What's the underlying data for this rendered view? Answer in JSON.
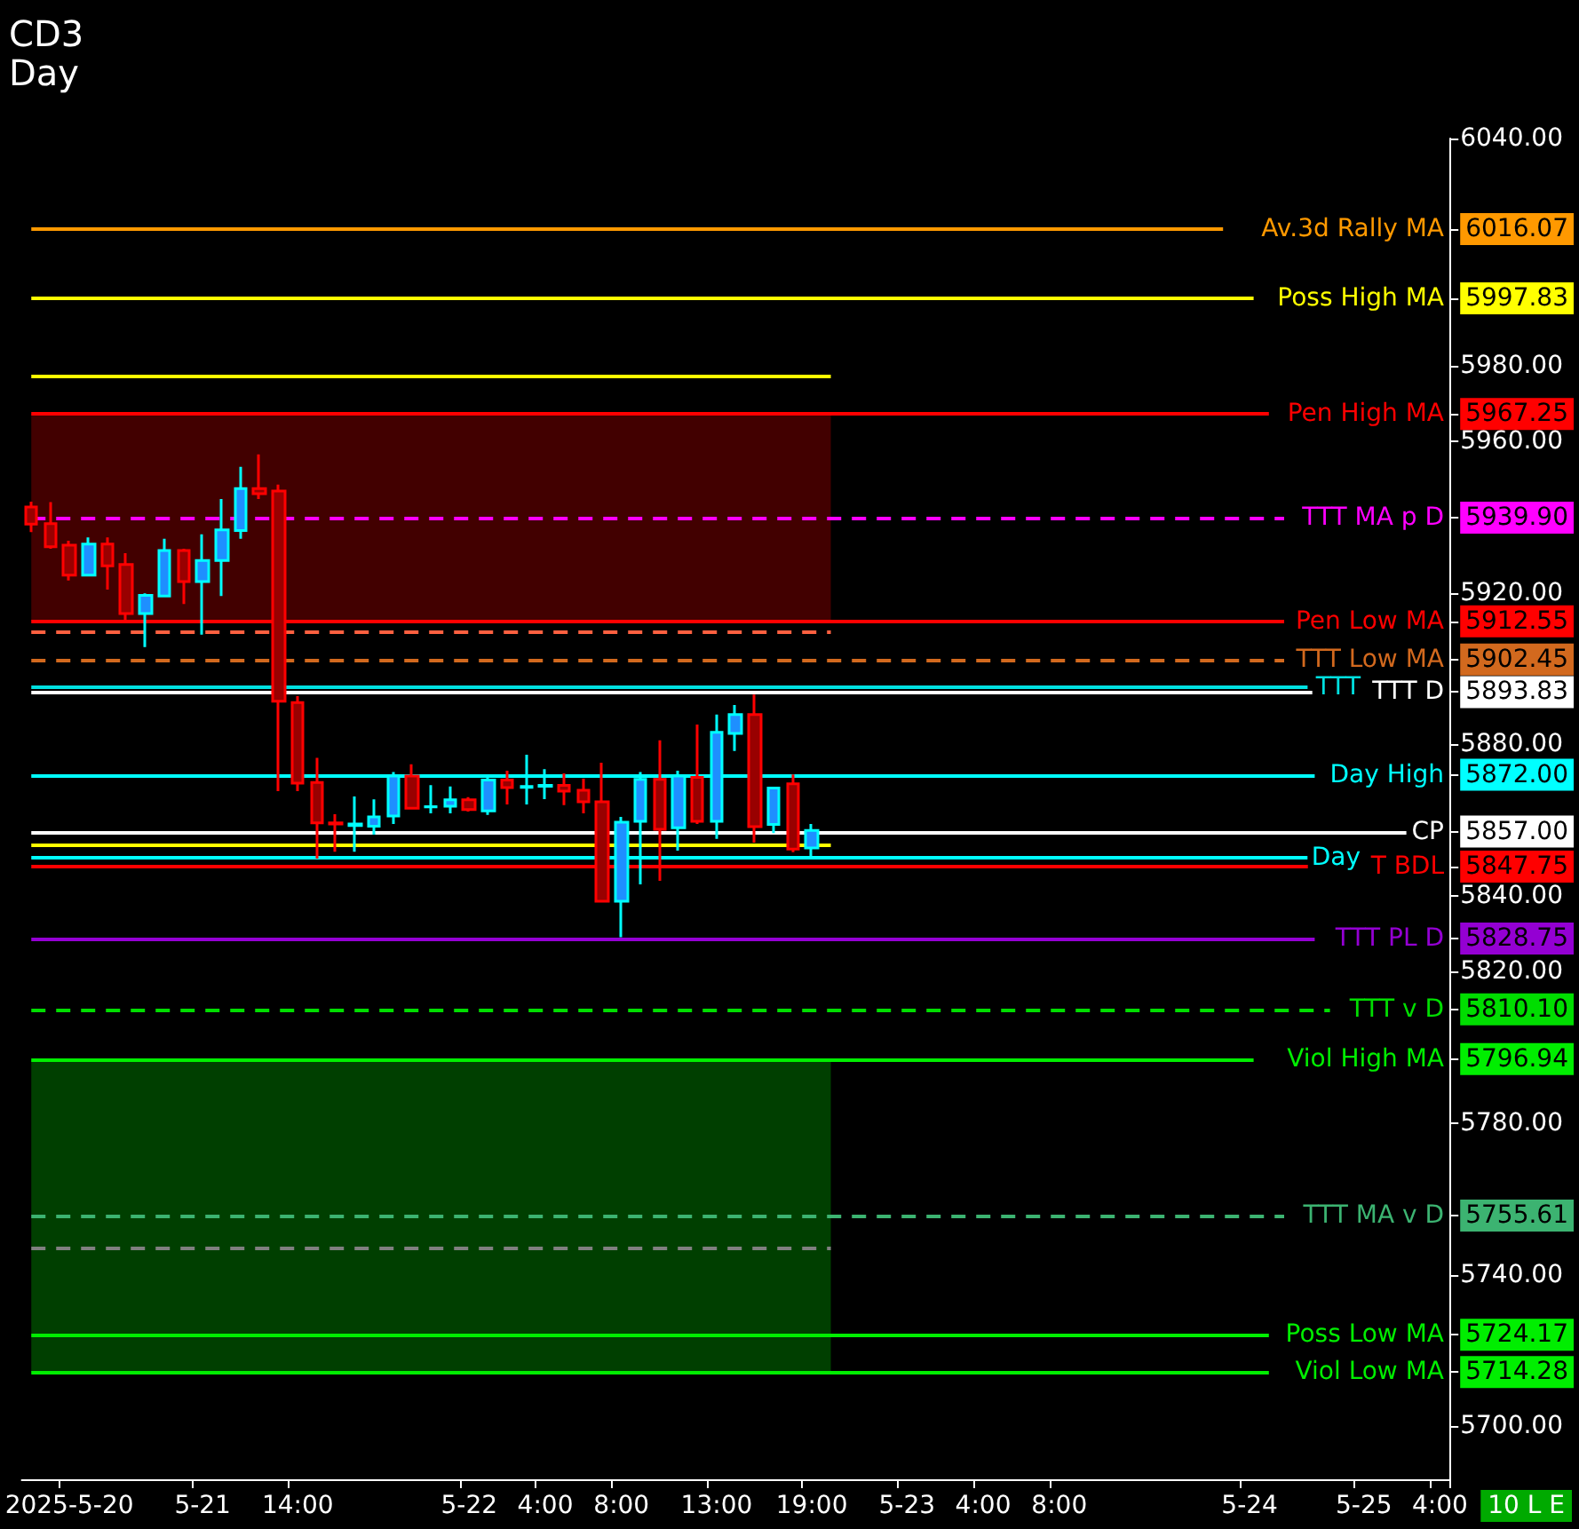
{
  "chart_data": {
    "type": "candlestick",
    "title": "CD3",
    "subtitle": "Day",
    "categories": [
      null,
      null,
      "2025-5-20",
      null,
      null,
      null,
      null,
      null,
      null,
      "5-21",
      null,
      null,
      null,
      null,
      "14:00",
      null,
      null,
      null,
      null,
      null,
      null,
      null,
      null,
      "5-22",
      null,
      null,
      null,
      "4:00",
      null,
      null,
      null,
      "8:00",
      null,
      null,
      null,
      null,
      "13:00",
      null,
      null,
      null,
      null,
      "19:00",
      null,
      null,
      null,
      null,
      "5-23",
      null,
      null,
      null,
      "4:00",
      null,
      null,
      null,
      "8:00",
      null,
      null,
      null,
      null,
      null,
      null,
      null,
      null,
      null,
      "5-24",
      null,
      null,
      null,
      null,
      null,
      "5-25",
      null,
      null,
      null,
      "4:00"
    ],
    "ohlc": [
      [
        5942.7,
        5944.1,
        5936.1,
        5938.2
      ],
      [
        5938.3,
        5944.0,
        5931.7,
        5932.2
      ],
      [
        5932.6,
        5933.8,
        5923.3,
        5924.7
      ],
      [
        5924.7,
        5934.7,
        5924.7,
        5932.9
      ],
      [
        5932.9,
        5934.7,
        5920.9,
        5927.2
      ],
      [
        5927.5,
        5930.5,
        5912.9,
        5914.6
      ],
      [
        5914.6,
        5919.9,
        5905.7,
        5919.4
      ],
      [
        5919.2,
        5934.3,
        5919.2,
        5931.2
      ],
      [
        5931.2,
        5931.7,
        5917.1,
        5923.0
      ],
      [
        5923.0,
        5935.5,
        5909.0,
        5928.6
      ],
      [
        5928.6,
        5944.8,
        5919.2,
        5936.7
      ],
      [
        5936.5,
        5953.3,
        5934.3,
        5947.6
      ],
      [
        5947.6,
        5956.6,
        5944.8,
        5946.2
      ],
      [
        5946.9,
        5948.6,
        5867.7,
        5891.4
      ],
      [
        5891.1,
        5892.8,
        5867.7,
        5869.8
      ],
      [
        5870.0,
        5876.5,
        5849.9,
        5859.3
      ],
      [
        5859.3,
        5861.6,
        5851.7,
        5859.0
      ],
      [
        5858.6,
        5866.3,
        5851.7,
        5859.0
      ],
      [
        5858.4,
        5865.5,
        5856.2,
        5860.9
      ],
      [
        5861.1,
        5872.7,
        5859.0,
        5871.7
      ],
      [
        5871.7,
        5874.8,
        5863.0,
        5863.2
      ],
      [
        5863.5,
        5869.3,
        5861.8,
        5863.6
      ],
      [
        5863.7,
        5868.9,
        5861.8,
        5865.4
      ],
      [
        5865.4,
        5866.1,
        5862.3,
        5862.8
      ],
      [
        5862.5,
        5871.3,
        5861.4,
        5870.6
      ],
      [
        5870.6,
        5873.1,
        5864.2,
        5868.6
      ],
      [
        5868.7,
        5877.3,
        5864.2,
        5868.9
      ],
      [
        5869.0,
        5873.5,
        5865.6,
        5869.2
      ],
      [
        5869.2,
        5872.4,
        5864.0,
        5867.7
      ],
      [
        5867.9,
        5871.0,
        5861.8,
        5864.9
      ],
      [
        5864.9,
        5875.2,
        5838.6,
        5838.6
      ],
      [
        5838.6,
        5860.9,
        5829.1,
        5859.5
      ],
      [
        5859.7,
        5872.7,
        5843.1,
        5870.8
      ],
      [
        5870.8,
        5881.1,
        5844.0,
        5857.6
      ],
      [
        5858.0,
        5873.1,
        5852.0,
        5871.7
      ],
      [
        5871.3,
        5885.3,
        5859.0,
        5859.7
      ],
      [
        5859.7,
        5887.9,
        5855.1,
        5883.2
      ],
      [
        5882.9,
        5890.4,
        5878.3,
        5887.9
      ],
      [
        5887.9,
        5893.2,
        5854.1,
        5858.3
      ],
      [
        5858.9,
        5868.5,
        5856.6,
        5868.5
      ],
      [
        5869.6,
        5872.1,
        5851.6,
        5852.4
      ],
      [
        5852.7,
        5859.0,
        5850.2,
        5857.3
      ],
      null,
      null,
      null,
      null,
      null,
      null,
      null,
      null,
      null,
      null,
      null,
      null,
      null,
      null,
      null,
      null,
      null,
      null,
      null,
      null,
      null,
      null,
      null,
      null,
      null,
      null,
      null,
      null,
      null,
      null,
      null,
      null,
      null
    ],
    "ylim": [
      5686,
      6040
    ],
    "yticks": [
      {
        "value": 5700,
        "label": "5700.00"
      },
      {
        "value": 5740,
        "label": "5740.00"
      },
      {
        "value": 5780,
        "label": "5780.00"
      },
      {
        "value": 5820,
        "label": "5820.00"
      },
      {
        "value": 5840,
        "label": "5840.00"
      },
      {
        "value": 5880,
        "label": "5880.00"
      },
      {
        "value": 5920,
        "label": "5920.00"
      },
      {
        "value": 5960,
        "label": "5960.00"
      },
      {
        "value": 5980,
        "label": "5980.00"
      },
      {
        "value": 6040,
        "label": "6040.00"
      },
      {
        "value": 6016.07,
        "label": "6016.07"
      },
      {
        "value": 5997.83,
        "label": "5997.83"
      },
      {
        "value": 5967.25,
        "label": "5967.25"
      },
      {
        "value": 5939.9,
        "label": "5939.90"
      },
      {
        "value": 5912.55,
        "label": "5912.55"
      },
      {
        "value": 5902.45,
        "label": "5902.45"
      },
      {
        "value": 5893.83,
        "label": "5893.83"
      },
      {
        "value": 5872.0,
        "label": "5872.00"
      },
      {
        "value": 5857.0,
        "label": "5857.00"
      },
      {
        "value": 5847.75,
        "label": "5847.75"
      },
      {
        "value": 5828.75,
        "label": "5828.75"
      },
      {
        "value": 5810.1,
        "label": "5810.10"
      },
      {
        "value": 5796.94,
        "label": "5796.94"
      },
      {
        "value": 5755.61,
        "label": "5755.61"
      },
      {
        "value": 5724.17,
        "label": "5724.17"
      },
      {
        "value": 5714.28,
        "label": "5714.28"
      }
    ],
    "bands": [
      {
        "axis": "y",
        "from": 5912.55,
        "to": 5967.25,
        "label": null,
        "color": "#420000"
      },
      {
        "axis": "y",
        "from": 5714.28,
        "to": 5796.94,
        "label": null,
        "color": "#003f00"
      }
    ],
    "ref_lines": [
      {
        "axis": "y",
        "value": 6016.07,
        "label": "Av.3d Rally MA",
        "color": "#ff9900",
        "line_style": "solid"
      },
      {
        "axis": "y",
        "value": 5997.83,
        "label": "Poss High MA",
        "color": "#ffff00",
        "line_style": "solid"
      },
      {
        "axis": "y",
        "value": 5977.3,
        "label": null,
        "color": "#ffff00",
        "line_style": "solid"
      },
      {
        "axis": "y",
        "value": 5967.25,
        "label": "Pen High MA",
        "color": "#ff0000",
        "line_style": "solid"
      },
      {
        "axis": "y",
        "value": 5939.9,
        "label": "TTT MA p D",
        "color": "#ff00ff",
        "line_style": "dashed"
      },
      {
        "axis": "y",
        "value": 5912.55,
        "label": "Pen Low MA",
        "color": "#ff0000",
        "line_style": "solid"
      },
      {
        "axis": "y",
        "value": 5909.8,
        "label": null,
        "color": "#ff6040",
        "line_style": "dashed"
      },
      {
        "axis": "y",
        "value": 5902.45,
        "label": "TTT Low MA",
        "color": "#d2691e",
        "line_style": "dashed"
      },
      {
        "axis": "y",
        "value": 5895.2,
        "label": "TTT",
        "color": "#00e0e0",
        "line_style": "solid"
      },
      {
        "axis": "y",
        "value": 5893.83,
        "label": "TTT D",
        "color": "#ffffff",
        "line_style": "solid"
      },
      {
        "axis": "y",
        "value": 5872.0,
        "label": "Day High",
        "color": "#00ffff",
        "line_style": "solid"
      },
      {
        "axis": "y",
        "value": 5857.0,
        "label": "CP",
        "color": "#ffffff",
        "line_style": "solid"
      },
      {
        "axis": "y",
        "value": 5853.7,
        "label": null,
        "color": "#ffff00",
        "line_style": "solid"
      },
      {
        "axis": "y",
        "value": 5850.2,
        "label": "Day",
        "color": "#00ffff",
        "line_style": "solid"
      },
      {
        "axis": "y",
        "value": 5847.75,
        "label": "T BDL",
        "color": "#ff0000",
        "line_style": "solid"
      },
      {
        "axis": "y",
        "value": 5828.75,
        "label": "TTT PL D",
        "color": "#9400d3",
        "line_style": "solid"
      },
      {
        "axis": "y",
        "value": 5810.1,
        "label": "TTT v D",
        "color": "#00dd00",
        "line_style": "dashed"
      },
      {
        "axis": "y",
        "value": 5796.94,
        "label": "Viol High MA",
        "color": "#00ee00",
        "line_style": "solid"
      },
      {
        "axis": "y",
        "value": 5755.61,
        "label": "TTT MA v D",
        "color": "#3cb371",
        "line_style": "dashed"
      },
      {
        "axis": "y",
        "value": 5747.3,
        "label": null,
        "color": "#808080",
        "line_style": "dashed"
      },
      {
        "axis": "y",
        "value": 5724.17,
        "label": "Poss Low MA",
        "color": "#00ee00",
        "line_style": "solid"
      },
      {
        "axis": "y",
        "value": 5714.28,
        "label": "Viol Low MA",
        "color": "#00ee00",
        "line_style": "solid"
      }
    ],
    "annotations": [
      "10 L E"
    ],
    "grid": false
  }
}
